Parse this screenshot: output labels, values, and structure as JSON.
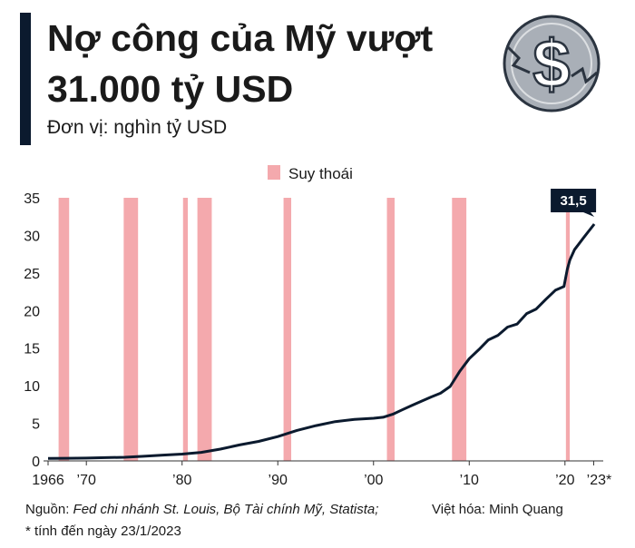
{
  "chart_data": {
    "type": "line",
    "title": [
      "Nợ công của Mỹ vượt",
      "31.000 tỷ USD"
    ],
    "subtitle": "Đơn vị: nghìn tỷ USD",
    "color": "#0b1a2e",
    "x": [
      1966,
      1968,
      1970,
      1972,
      1974,
      1976,
      1978,
      1980,
      1982,
      1984,
      1986,
      1988,
      1990,
      1992,
      1994,
      1996,
      1998,
      2000,
      2001,
      2002,
      2003,
      2004,
      2005,
      2006,
      2007,
      2008,
      2009,
      2010,
      2011,
      2012,
      2013,
      2014,
      2015,
      2016,
      2017,
      2018,
      2019,
      2019.9,
      2020.25,
      2020.5,
      2021,
      2021.9,
      2022.5,
      2023.06
    ],
    "values": [
      0.32,
      0.35,
      0.38,
      0.43,
      0.48,
      0.62,
      0.77,
      0.91,
      1.14,
      1.57,
      2.12,
      2.6,
      3.23,
      4.06,
      4.69,
      5.22,
      5.53,
      5.67,
      5.8,
      6.2,
      6.8,
      7.38,
      7.93,
      8.5,
      9.0,
      9.9,
      11.9,
      13.6,
      14.8,
      16.1,
      16.7,
      17.8,
      18.2,
      19.6,
      20.2,
      21.5,
      22.7,
      23.2,
      25.5,
      26.7,
      28.1,
      29.6,
      30.6,
      31.5
    ],
    "value_labels": [
      null,
      null,
      null,
      null,
      null,
      null,
      null,
      null,
      null,
      null,
      null,
      null,
      null,
      null,
      null,
      null,
      null,
      null,
      null,
      null,
      null,
      null,
      null,
      null,
      null,
      null,
      null,
      null,
      null,
      null,
      null,
      null,
      null,
      null,
      null,
      null,
      null,
      null,
      null,
      null,
      null,
      null,
      null,
      "31,5"
    ],
    "recessions": {
      "name": "Suy thoái",
      "color": "#f4a9ad",
      "ranges": [
        [
          1967.1,
          1968.2
        ],
        [
          1973.9,
          1975.4
        ],
        [
          1980.1,
          1980.6
        ],
        [
          1981.6,
          1983.1
        ],
        [
          1990.6,
          1991.4
        ],
        [
          2001.4,
          2002.2
        ],
        [
          2008.2,
          2009.7
        ],
        [
          2020.1,
          2020.5
        ]
      ]
    },
    "xlim": [
      1966,
      2024
    ],
    "xticks": [
      1966,
      {
        "value": 1970,
        "label": "’70"
      },
      {
        "value": 1980,
        "label": "’80"
      },
      {
        "value": 1990,
        "label": "’90"
      },
      {
        "value": 2000,
        "label": "’00"
      },
      {
        "value": 2010,
        "label": "’10"
      },
      {
        "value": 2020,
        "label": "’20"
      },
      {
        "value": 2023,
        "label": "’23*"
      }
    ],
    "ylim": [
      0,
      35
    ],
    "yticks": [
      0,
      5,
      10,
      15,
      20,
      25,
      30,
      35
    ],
    "grid": false,
    "legend": "top",
    "source_label": "Nguồn:",
    "source": "Fed chi nhánh St. Louis, Bộ Tài chính Mỹ, Statista;",
    "note": "* tính đến ngày 23/1/2023",
    "credit": "Việt hóa: Minh Quang"
  }
}
